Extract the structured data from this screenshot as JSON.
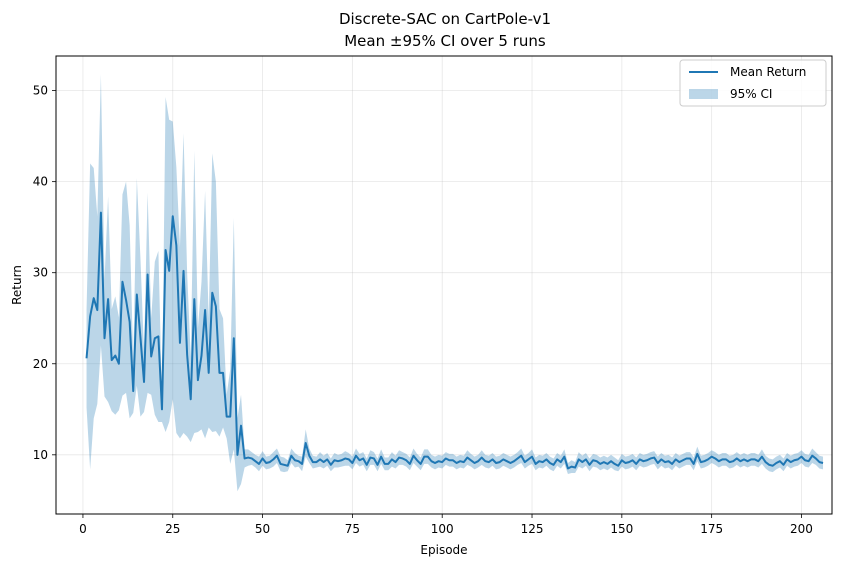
{
  "chart_data": {
    "type": "line",
    "title": "Discrete-SAC on CartPole-v1",
    "subtitle": "Mean ±95% CI over 5 runs",
    "xlabel": "Episode",
    "ylabel": "Return",
    "xlim": [
      -7.5,
      208.5
    ],
    "ylim": [
      3.5,
      53.8
    ],
    "xticks": [
      0,
      25,
      50,
      75,
      100,
      125,
      150,
      175,
      200
    ],
    "yticks": [
      10,
      20,
      30,
      40,
      50
    ],
    "grid": true,
    "legend": {
      "placement": "top-right",
      "entries": [
        "Mean Return",
        "95% CI"
      ]
    },
    "colors": {
      "line": "#1f77b4",
      "band": "#1f77b4",
      "band_alpha": 0.3
    },
    "series": [
      {
        "name": "Mean Return",
        "x_start": 1,
        "values": [
          20.6,
          25.2,
          27.2,
          25.9,
          36.6,
          22.8,
          27.1,
          20.4,
          20.9,
          20.0,
          29.0,
          27.0,
          24.6,
          17.0,
          27.6,
          22.9,
          18.0,
          29.8,
          20.8,
          22.8,
          23.0,
          15.0,
          32.5,
          30.2,
          36.2,
          33.0,
          22.3,
          30.2,
          21.0,
          16.1,
          27.1,
          18.2,
          20.9,
          25.9,
          19.0,
          27.8,
          26.3,
          19.0,
          19.0,
          14.2,
          14.2,
          22.8,
          10.0,
          13.2,
          9.6,
          9.7,
          9.6,
          9.3,
          9.0,
          9.6,
          9.1,
          9.2,
          9.5,
          9.9,
          9.0,
          8.9,
          8.8,
          9.9,
          9.4,
          9.3,
          9.0,
          11.3,
          9.9,
          9.2,
          9.2,
          9.5,
          9.2,
          9.5,
          8.9,
          9.4,
          9.3,
          9.4,
          9.6,
          9.5,
          9.1,
          9.9,
          9.4,
          9.6,
          8.9,
          9.7,
          9.6,
          8.9,
          9.8,
          9.0,
          9.0,
          9.5,
          9.2,
          9.7,
          9.6,
          9.4,
          9.0,
          9.9,
          9.4,
          9.0,
          9.8,
          9.8,
          9.3,
          9.1,
          9.3,
          9.2,
          9.6,
          9.4,
          9.4,
          9.1,
          9.3,
          9.2,
          9.7,
          9.4,
          9.1,
          9.3,
          9.7,
          9.3,
          9.2,
          9.5,
          9.1,
          9.2,
          9.5,
          9.3,
          9.1,
          9.3,
          9.6,
          9.9,
          9.2,
          9.5,
          9.8,
          9.0,
          9.3,
          9.2,
          9.5,
          9.1,
          8.9,
          9.5,
          9.2,
          9.8,
          8.5,
          8.7,
          8.6,
          9.5,
          9.2,
          9.5,
          8.9,
          9.4,
          9.3,
          9.0,
          9.2,
          9.0,
          9.3,
          9.0,
          8.8,
          9.4,
          9.1,
          9.2,
          9.4,
          9.0,
          9.5,
          9.3,
          9.4,
          9.6,
          9.7,
          9.1,
          9.5,
          9.2,
          9.3,
          9.0,
          9.5,
          9.2,
          9.4,
          9.6,
          9.6,
          9.0,
          10.1,
          9.2,
          9.3,
          9.5,
          9.8,
          9.6,
          9.3,
          9.5,
          9.5,
          9.2,
          9.3,
          9.6,
          9.3,
          9.5,
          9.3,
          9.5,
          9.5,
          9.3,
          9.8,
          9.2,
          8.9,
          8.8,
          9.1,
          9.3,
          8.9,
          9.5,
          9.2,
          9.4,
          9.5,
          9.8,
          9.4,
          9.3,
          9.9,
          9.6,
          9.2,
          9.1
        ]
      },
      {
        "name": "95% CI",
        "x_start": 1,
        "lower": [
          15.2,
          8.4,
          14.0,
          15.6,
          22.0,
          16.4,
          15.8,
          14.8,
          14.4,
          14.9,
          16.5,
          16.8,
          14.0,
          14.6,
          17.6,
          14.2,
          14.7,
          16.8,
          16.6,
          14.4,
          13.6,
          13.6,
          12.5,
          13.6,
          16.1,
          12.4,
          11.8,
          12.4,
          12.0,
          11.4,
          12.4,
          12.5,
          12.8,
          11.8,
          13.0,
          12.5,
          12.6,
          12.0,
          13.0,
          11.8,
          9.0,
          10.6,
          6.0,
          6.8,
          8.6,
          8.8,
          8.9,
          8.6,
          8.2,
          8.8,
          8.4,
          8.5,
          8.7,
          9.1,
          8.2,
          8.1,
          8.2,
          9.1,
          8.6,
          8.7,
          8.2,
          9.8,
          9.1,
          8.5,
          8.6,
          8.7,
          8.5,
          8.8,
          8.2,
          8.6,
          8.6,
          8.7,
          8.8,
          8.8,
          8.4,
          9.1,
          8.7,
          8.9,
          8.2,
          8.9,
          8.9,
          8.2,
          9.0,
          8.3,
          8.3,
          8.7,
          8.5,
          8.9,
          8.9,
          8.7,
          8.3,
          9.1,
          8.7,
          8.3,
          9.0,
          9.0,
          8.6,
          8.4,
          8.6,
          8.5,
          8.9,
          8.7,
          8.7,
          8.4,
          8.6,
          8.5,
          8.9,
          8.7,
          8.4,
          8.6,
          8.9,
          8.6,
          8.5,
          8.8,
          8.4,
          8.5,
          8.8,
          8.6,
          8.4,
          8.6,
          8.9,
          9.1,
          8.5,
          8.8,
          9.0,
          8.3,
          8.6,
          8.5,
          8.8,
          8.4,
          8.2,
          8.8,
          8.5,
          9.0,
          7.9,
          8.0,
          8.0,
          8.7,
          8.5,
          8.8,
          8.2,
          8.7,
          8.6,
          8.3,
          8.5,
          8.3,
          8.6,
          8.3,
          8.2,
          8.7,
          8.4,
          8.5,
          8.7,
          8.3,
          8.8,
          8.6,
          8.7,
          8.9,
          9.0,
          8.4,
          8.8,
          8.5,
          8.6,
          8.3,
          8.8,
          8.5,
          8.7,
          8.9,
          8.9,
          8.3,
          9.3,
          8.5,
          8.6,
          8.8,
          9.1,
          8.9,
          8.6,
          8.8,
          8.8,
          8.5,
          8.6,
          8.9,
          8.6,
          8.8,
          8.6,
          8.8,
          8.8,
          8.6,
          9.0,
          8.5,
          8.2,
          8.1,
          8.4,
          8.6,
          8.2,
          8.8,
          8.5,
          8.7,
          8.8,
          9.1,
          8.7,
          8.6,
          9.1,
          8.9,
          8.5,
          8.4
        ],
        "upper": [
          26.0,
          42.0,
          41.5,
          36.2,
          51.8,
          29.2,
          38.4,
          26.0,
          27.4,
          25.1,
          38.6,
          40.0,
          35.2,
          20.4,
          40.4,
          31.6,
          21.3,
          38.8,
          25.0,
          31.2,
          32.4,
          16.4,
          49.3,
          46.8,
          46.6,
          41.6,
          32.8,
          45.3,
          30.0,
          20.8,
          43.4,
          23.9,
          29.0,
          39.0,
          25.0,
          43.1,
          40.0,
          26.0,
          25.0,
          16.6,
          19.4,
          36.0,
          14.0,
          16.6,
          10.6,
          10.6,
          10.3,
          10.0,
          9.8,
          10.4,
          9.8,
          9.9,
          10.3,
          10.7,
          9.8,
          9.7,
          9.4,
          10.7,
          10.2,
          9.9,
          9.8,
          12.8,
          10.7,
          9.9,
          9.8,
          10.3,
          9.9,
          10.2,
          9.6,
          10.2,
          10.0,
          10.1,
          10.4,
          10.2,
          9.8,
          10.7,
          10.1,
          10.3,
          9.6,
          10.5,
          10.3,
          9.6,
          10.6,
          9.7,
          9.7,
          10.3,
          9.9,
          10.5,
          10.3,
          10.1,
          9.7,
          10.7,
          10.1,
          9.7,
          10.6,
          10.6,
          10.0,
          9.8,
          10.0,
          9.9,
          10.3,
          10.1,
          10.1,
          9.8,
          10.0,
          9.9,
          10.5,
          10.1,
          9.8,
          10.0,
          10.5,
          10.0,
          9.9,
          10.2,
          9.8,
          9.9,
          10.2,
          10.0,
          9.8,
          10.0,
          10.3,
          10.7,
          9.9,
          10.2,
          10.6,
          9.7,
          10.0,
          9.9,
          10.2,
          9.8,
          9.6,
          10.2,
          9.9,
          10.6,
          9.1,
          9.4,
          9.2,
          10.3,
          9.9,
          10.2,
          9.6,
          10.1,
          10.0,
          9.7,
          9.9,
          9.7,
          10.0,
          9.7,
          9.4,
          10.1,
          9.8,
          9.9,
          10.1,
          9.7,
          10.2,
          10.0,
          10.1,
          10.3,
          10.4,
          9.8,
          10.2,
          9.9,
          10.0,
          9.7,
          10.2,
          9.9,
          10.1,
          10.3,
          10.3,
          9.7,
          10.9,
          9.9,
          10.0,
          10.2,
          10.5,
          10.3,
          10.0,
          10.2,
          10.2,
          9.9,
          10.0,
          10.3,
          10.0,
          10.2,
          10.0,
          10.2,
          10.2,
          10.0,
          10.6,
          9.9,
          9.6,
          9.5,
          9.8,
          10.0,
          9.6,
          10.2,
          9.9,
          10.1,
          10.2,
          10.5,
          10.1,
          10.0,
          10.7,
          10.3,
          9.9,
          9.8
        ]
      }
    ]
  }
}
